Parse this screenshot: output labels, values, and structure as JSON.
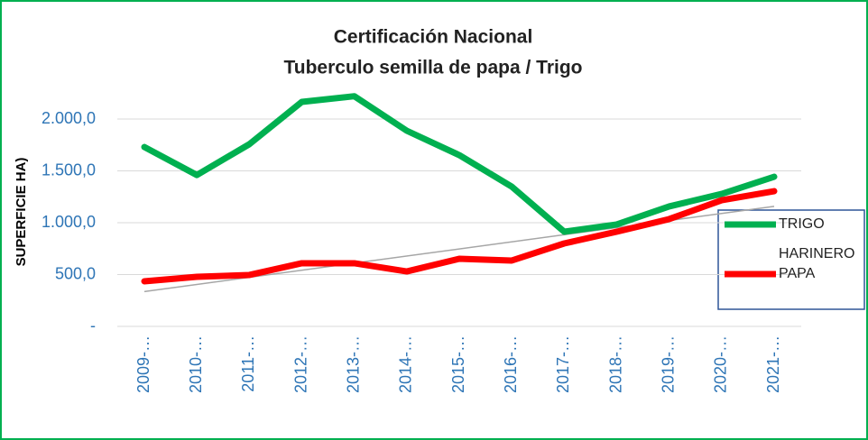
{
  "chart_data": {
    "type": "line",
    "title": "Certificación Nacional",
    "subtitle": "Tuberculo semilla de papa / Trigo",
    "y_label": "SUPERFICIE HA)",
    "categories": [
      "2009-…",
      "2010-…",
      "2011-…",
      "2012-…",
      "2013-…",
      "2014-…",
      "2015-…",
      "2016-…",
      "2017-…",
      "2018-…",
      "2019-…",
      "2020-…",
      "2021-…"
    ],
    "series": [
      {
        "name": "TRIGO HARINERO",
        "color": "#00b050",
        "values": [
          1730,
          1460,
          1757,
          2165,
          2220,
          1887,
          1652,
          1348,
          913,
          983,
          1157,
          1278,
          1443
        ]
      },
      {
        "name": "PAPA",
        "color": "#ff0000",
        "values": [
          435,
          478,
          496,
          609,
          609,
          530,
          652,
          635,
          800,
          913,
          1035,
          1217,
          1304
        ],
        "trendline": true
      }
    ],
    "ylim": [
      0,
      2250
    ],
    "yticks": [
      {
        "value": 0,
        "label": "-"
      },
      {
        "value": 500,
        "label": "500,0"
      },
      {
        "value": 1000,
        "label": "1.000,0"
      },
      {
        "value": 1500,
        "label": "1.500,0"
      },
      {
        "value": 2000,
        "label": "2.000,0"
      }
    ],
    "grid": true,
    "legend": "right"
  }
}
